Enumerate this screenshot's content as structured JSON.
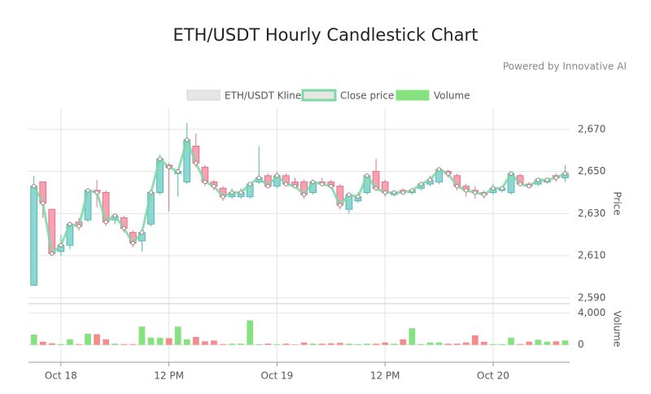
{
  "chart_data": {
    "type": "candlestick",
    "title": "ETH/USDT Hourly Candlestick Chart",
    "subtitle": "Powered by Innovative AI",
    "y_label": "Price",
    "y2_label": "Volume",
    "x": [
      -3,
      -2,
      -1,
      0,
      1,
      2,
      3,
      4,
      5,
      6,
      7,
      8,
      9,
      10,
      11,
      12,
      13,
      14,
      15,
      16,
      17,
      18,
      19,
      20,
      21,
      22,
      23,
      24,
      25,
      26,
      27,
      28,
      29,
      30,
      31,
      32,
      33,
      34,
      35,
      36,
      37,
      38,
      39,
      40,
      41,
      42,
      43,
      44,
      45,
      46,
      47,
      48,
      49,
      50,
      51,
      52,
      53,
      54,
      55,
      56
    ],
    "xlim": [
      -3.6,
      56.5
    ],
    "xticks": [
      {
        "value": 0,
        "label": "Oct 18"
      },
      {
        "value": 12,
        "label": "12 PM"
      },
      {
        "value": 24,
        "label": "Oct 19"
      },
      {
        "value": 36,
        "label": "12 PM"
      },
      {
        "value": 48,
        "label": "Oct 20"
      }
    ],
    "ylim": [
      2588,
      2680
    ],
    "yticks": [
      {
        "value": 2590,
        "label": "2,590"
      },
      {
        "value": 2610,
        "label": "2,610"
      },
      {
        "value": 2630,
        "label": "2,630"
      },
      {
        "value": 2650,
        "label": "2,650"
      },
      {
        "value": 2670,
        "label": "2,670"
      }
    ],
    "y2lim": [
      -2200,
      4900
    ],
    "y2ticks": [
      0,
      {
        "value": 4000,
        "label": "4,000"
      }
    ],
    "grid": true,
    "series": [
      {
        "name": "ETH/USDT Kline",
        "up_color": "#8ed6d2",
        "up_border": "#4fb9b1",
        "down_color": "#f7a1b2",
        "down_border": "#e27189",
        "open": [
          2596,
          2645,
          2632,
          2612,
          2615,
          2626,
          2627,
          2641,
          2640,
          2627,
          2628,
          2621,
          2617,
          2625,
          2640,
          2653,
          2649,
          2645,
          2662,
          2652,
          2645,
          2642,
          2638,
          2638,
          2638,
          2645,
          2648,
          2643,
          2648,
          2645,
          2645,
          2640,
          2645,
          2645,
          2643,
          2632,
          2636,
          2640,
          2650,
          2645,
          2639,
          2641,
          2640,
          2642,
          2644,
          2645,
          2650,
          2648,
          2643,
          2641,
          2640,
          2640,
          2641,
          2640,
          2648,
          2644,
          2644,
          2645,
          2648,
          2647
        ],
        "close": [
          2643,
          2635,
          2611,
          2615,
          2625,
          2624,
          2641,
          2640,
          2626,
          2629,
          2623,
          2616,
          2621,
          2640,
          2656,
          2652,
          2650,
          2665,
          2654,
          2645,
          2643,
          2638,
          2640,
          2640,
          2644,
          2647,
          2643,
          2648,
          2644,
          2643,
          2639,
          2645,
          2644,
          2643,
          2634,
          2639,
          2638,
          2648,
          2642,
          2640,
          2640,
          2640,
          2641,
          2644,
          2646,
          2651,
          2649,
          2643,
          2641,
          2640,
          2639,
          2642,
          2642,
          2649,
          2644,
          2643,
          2646,
          2646,
          2647,
          2649
        ],
        "high": [
          2648,
          2645,
          2632,
          2620,
          2626,
          2628,
          2642,
          2646,
          2641,
          2630,
          2629,
          2622,
          2622,
          2641,
          2658,
          2654,
          2651,
          2673,
          2668,
          2653,
          2646,
          2643,
          2642,
          2642,
          2645,
          2662,
          2649,
          2650,
          2649,
          2647,
          2646,
          2646,
          2647,
          2646,
          2644,
          2640,
          2640,
          2649,
          2656,
          2646,
          2641,
          2642,
          2642,
          2645,
          2648,
          2652,
          2651,
          2649,
          2644,
          2643,
          2641,
          2644,
          2643,
          2650,
          2649,
          2645,
          2647,
          2647,
          2649,
          2653
        ],
        "low": [
          2596,
          2628,
          2610,
          2610,
          2613,
          2622,
          2626,
          2633,
          2624,
          2625,
          2621,
          2614,
          2612,
          2624,
          2639,
          2631,
          2638,
          2644,
          2652,
          2643,
          2641,
          2636,
          2637,
          2637,
          2637,
          2644,
          2642,
          2642,
          2643,
          2642,
          2637,
          2639,
          2643,
          2642,
          2632,
          2630,
          2635,
          2639,
          2641,
          2638,
          2638,
          2639,
          2639,
          2641,
          2643,
          2644,
          2647,
          2641,
          2638,
          2637,
          2637,
          2639,
          2640,
          2639,
          2643,
          2642,
          2643,
          2644,
          2645,
          2645
        ]
      },
      {
        "name": "Close price",
        "color": "#7dd8a4"
      },
      {
        "name": "Volume",
        "axis": "y2",
        "up_color": "#86e27e",
        "down_color": "#f58c8c",
        "values": [
          1300,
          400,
          200,
          100,
          700,
          100,
          1400,
          1350,
          700,
          150,
          100,
          100,
          2300,
          900,
          900,
          850,
          2300,
          700,
          1000,
          450,
          550,
          100,
          150,
          150,
          3100,
          100,
          150,
          100,
          150,
          50,
          300,
          150,
          150,
          200,
          250,
          150,
          100,
          150,
          150,
          300,
          150,
          700,
          2100,
          100,
          300,
          300,
          150,
          150,
          300,
          1200,
          400,
          100,
          100,
          900,
          100,
          400,
          650,
          400,
          450,
          550
        ]
      }
    ]
  }
}
